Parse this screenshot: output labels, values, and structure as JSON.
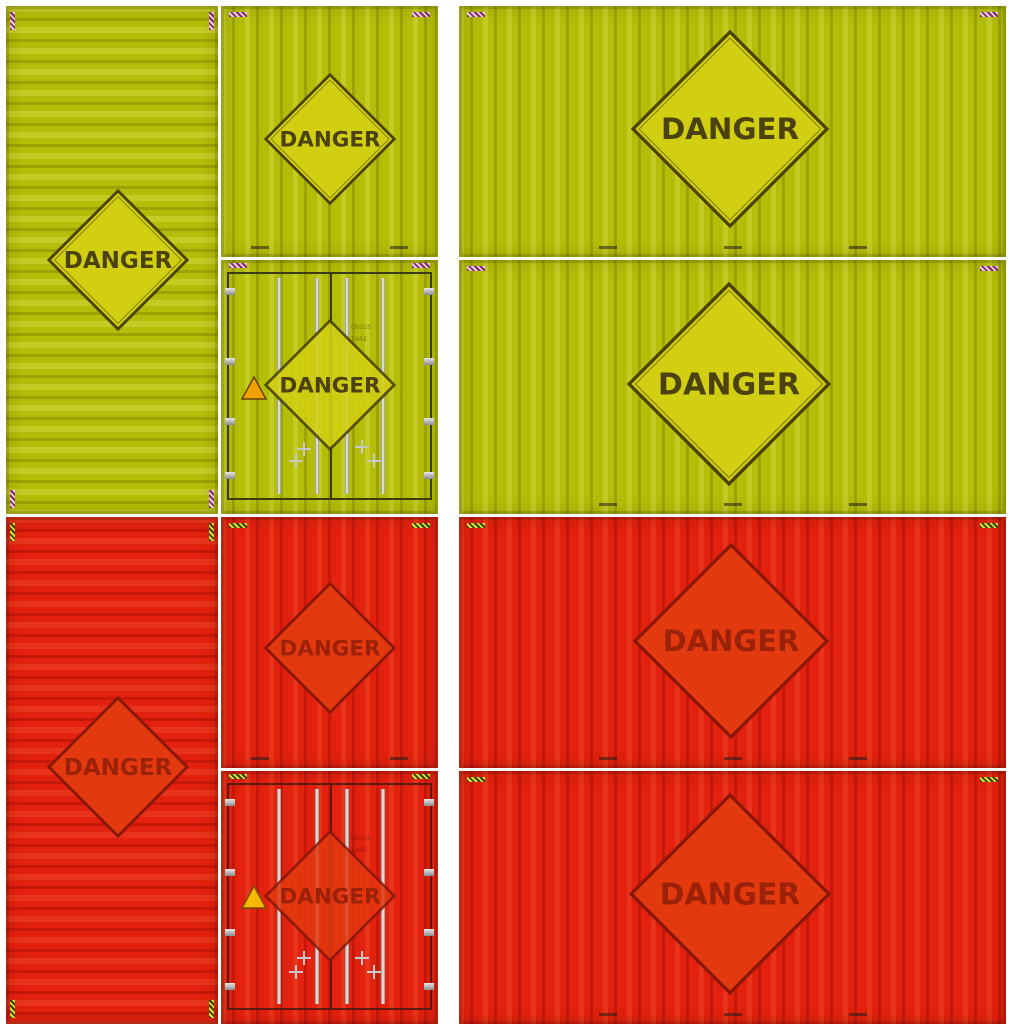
{
  "sign_text": "DANGER",
  "themes": {
    "yellow": {
      "base": "#b4bd08",
      "sign": "#d2cf12",
      "text": "#4b4210"
    },
    "red": {
      "base": "#e2210e",
      "sign": "#e3390e",
      "text": "#9b2108"
    }
  },
  "door_labels": {
    "gross": "GROSS",
    "tare": "TARE"
  },
  "icons": {
    "warning": "warning-triangle-icon",
    "cam": "door-cam-icon"
  }
}
